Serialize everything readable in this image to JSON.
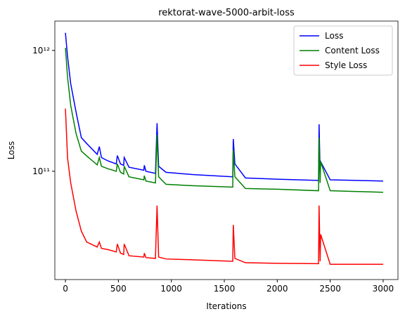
{
  "chart_data": {
    "type": "line",
    "title": "rektorat-wave-5000-arbit-loss",
    "xlabel": "Iterations",
    "ylabel": "Loss",
    "x": [
      0,
      20,
      50,
      100,
      150,
      200,
      300,
      320,
      340,
      400,
      480,
      490,
      520,
      550,
      555,
      600,
      740,
      745,
      760,
      850,
      865,
      880,
      950,
      1200,
      1580,
      1585,
      1600,
      1700,
      2000,
      2390,
      2395,
      2405,
      2410,
      2500,
      3000
    ],
    "series": [
      {
        "name": "Loss",
        "color": "#0000ff",
        "values": [
          1400000000000.0,
          890000000000.0,
          530000000000.0,
          310000000000.0,
          190000000000.0,
          170000000000.0,
          138000000000.0,
          160000000000.0,
          130000000000.0,
          122000000000.0,
          115000000000.0,
          135000000000.0,
          115000000000.0,
          112000000000.0,
          130000000000.0,
          108000000000.0,
          102000000000.0,
          112000000000.0,
          100000000000.0,
          96000000000.0,
          250000000000.0,
          110000000000.0,
          98000000000.0,
          94000000000.0,
          90000000000.0,
          185000000000.0,
          115000000000.0,
          88000000000.0,
          86000000000.0,
          84000000000.0,
          245000000000.0,
          100000000000.0,
          120000000000.0,
          85000000000.0,
          83000000000.0
        ]
      },
      {
        "name": "Content Loss",
        "color": "#008000",
        "values": [
          1050000000000.0,
          600000000000.0,
          350000000000.0,
          206000000000.0,
          147000000000.0,
          134000000000.0,
          113000000000.0,
          130000000000.0,
          110000000000.0,
          105000000000.0,
          100000000000.0,
          115000000000.0,
          98000000000.0,
          95000000000.0,
          110000000000.0,
          90000000000.0,
          85000000000.0,
          92000000000.0,
          83000000000.0,
          80000000000.0,
          200000000000.0,
          90000000000.0,
          78000000000.0,
          76000000000.0,
          74000000000.0,
          150000000000.0,
          90000000000.0,
          72000000000.0,
          71000000000.0,
          69000000000.0,
          190000000000.0,
          80000000000.0,
          120000000000.0,
          69000000000.0,
          67000000000.0
        ]
      },
      {
        "name": "Style Loss",
        "color": "#ff0000",
        "values": [
          330000000000.0,
          129000000000.0,
          80000000000.0,
          47000000000.0,
          32000000000.0,
          26000000000.0,
          23600000000.0,
          26000000000.0,
          23000000000.0,
          22500000000.0,
          21500000000.0,
          25000000000.0,
          21000000000.0,
          20500000000.0,
          25000000000.0,
          20000000000.0,
          19500000000.0,
          21000000000.0,
          19300000000.0,
          19000000000.0,
          52000000000.0,
          19500000000.0,
          18800000000.0,
          18500000000.0,
          18000000000.0,
          36000000000.0,
          19000000000.0,
          17500000000.0,
          17300000000.0,
          17200000000.0,
          52000000000.0,
          18000000000.0,
          30000000000.0,
          17000000000.0,
          17000000000.0
        ]
      }
    ],
    "xlim": [
      -100,
      3140
    ],
    "xticks": [
      0,
      500,
      1000,
      1500,
      2000,
      2500,
      3000
    ],
    "ylim": [
      12700000000.0,
      1750000000000.0
    ],
    "yticks": [
      {
        "value": 100000000000.0,
        "label": "10¹¹"
      },
      {
        "value": 1000000000000.0,
        "label": "10¹²"
      }
    ],
    "log_y": true,
    "legend": "upper right"
  }
}
